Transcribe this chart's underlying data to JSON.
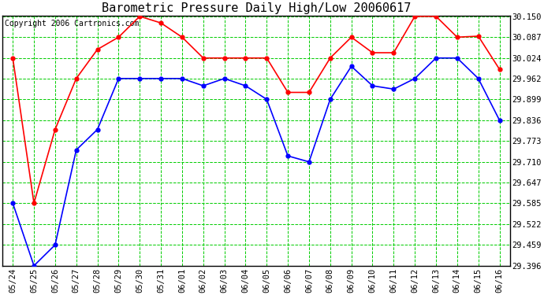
{
  "title": "Barometric Pressure Daily High/Low 20060617",
  "copyright": "Copyright 2006 Cartronics.com",
  "background_color": "#ffffff",
  "plot_bg_color": "#ffffff",
  "grid_color": "#00cc00",
  "line_color_high": "#ff0000",
  "line_color_low": "#0000ff",
  "marker_color_high": "#ff0000",
  "marker_color_low": "#0000ff",
  "dates": [
    "05/24",
    "05/25",
    "05/26",
    "05/27",
    "05/28",
    "05/29",
    "05/30",
    "05/31",
    "06/01",
    "06/02",
    "06/03",
    "06/04",
    "06/05",
    "06/06",
    "06/07",
    "06/08",
    "06/09",
    "06/10",
    "06/11",
    "06/12",
    "06/13",
    "06/14",
    "06/15",
    "06/16"
  ],
  "high_values": [
    30.024,
    29.585,
    29.808,
    29.962,
    30.05,
    30.087,
    30.15,
    30.13,
    30.087,
    30.024,
    30.024,
    30.024,
    30.024,
    29.92,
    29.92,
    30.024,
    30.087,
    30.04,
    30.04,
    30.15,
    30.15,
    30.087,
    30.09,
    29.99
  ],
  "low_values": [
    29.585,
    29.396,
    29.459,
    29.746,
    29.808,
    29.962,
    29.962,
    29.962,
    29.962,
    29.94,
    29.962,
    29.94,
    29.899,
    29.728,
    29.71,
    29.899,
    29.999,
    29.94,
    29.93,
    29.962,
    30.024,
    30.024,
    29.962,
    29.836
  ],
  "ylim_min": 29.396,
  "ylim_max": 30.15,
  "yticks": [
    29.396,
    29.459,
    29.522,
    29.585,
    29.647,
    29.71,
    29.773,
    29.836,
    29.899,
    29.962,
    30.024,
    30.087,
    30.15
  ],
  "title_fontsize": 11,
  "copyright_fontsize": 7,
  "tick_fontsize": 7.5,
  "xlabel_rotation": 90
}
